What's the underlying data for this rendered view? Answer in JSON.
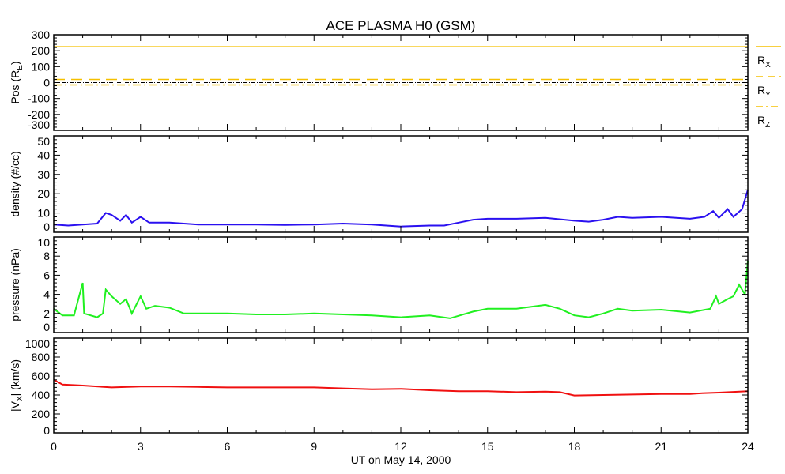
{
  "chart_data": {
    "type": "line",
    "title": "ACE PLASMA H0 (GSM)",
    "xlabel": "UT on May 14, 2000",
    "xlim": [
      0,
      24
    ],
    "xticks": [
      0,
      3,
      6,
      9,
      12,
      15,
      18,
      21,
      24
    ],
    "colors": {
      "pos": "#f5c000",
      "density": "#2a10f0",
      "pressure": "#20f020",
      "vx": "#f01010",
      "zero": "#000000"
    },
    "panels": [
      {
        "id": "pos",
        "ylabel": "Pos (R",
        "ylabel_sub": "E",
        "ylabel_end": ")",
        "ylim": [
          -300,
          300
        ],
        "yticks": [
          -300,
          -200,
          -100,
          0,
          100,
          200,
          300
        ],
        "series": [
          {
            "name": "R",
            "sub": "X",
            "style": "solid",
            "x": [
              0,
              24
            ],
            "y": [
              225,
              225
            ]
          },
          {
            "name": "R",
            "sub": "Y",
            "style": "dashed",
            "x": [
              0,
              24
            ],
            "y": [
              20,
              20
            ]
          },
          {
            "name": "R",
            "sub": "Z",
            "style": "dashdot",
            "x": [
              0,
              24
            ],
            "y": [
              -15,
              -15
            ]
          }
        ],
        "zero_line": true
      },
      {
        "id": "density",
        "ylabel": "density (#/cc)",
        "ylabel_sub": "",
        "ylabel_end": "",
        "ylim": [
          0,
          50
        ],
        "yticks": [
          0,
          10,
          20,
          30,
          40,
          50
        ],
        "series": [
          {
            "name": "density",
            "style": "solid",
            "x": [
              0,
              0.5,
              1,
              1.5,
              1.8,
              2.0,
              2.3,
              2.5,
              2.7,
              3,
              3.3,
              4,
              5,
              6,
              7,
              8,
              9,
              10,
              11,
              12,
              13,
              13.5,
              14,
              14.5,
              15,
              16,
              17,
              18,
              18.5,
              19,
              19.5,
              20,
              21,
              22,
              22.5,
              22.8,
              23,
              23.3,
              23.5,
              23.8,
              24
            ],
            "y": [
              4,
              3.5,
              4,
              4.5,
              10,
              9,
              6,
              9,
              5,
              8,
              5,
              5,
              4,
              4,
              4,
              3.8,
              4,
              4.5,
              4,
              3,
              3.5,
              3.5,
              5,
              6.5,
              7,
              7,
              7.5,
              6,
              5.5,
              6.5,
              8,
              7.5,
              8,
              7,
              8,
              11,
              7.5,
              12,
              8,
              12,
              22
            ]
          }
        ]
      },
      {
        "id": "pressure",
        "ylabel": "pressure (nPa)",
        "ylabel_sub": "",
        "ylabel_end": "",
        "ylim": [
          0,
          10
        ],
        "yticks": [
          0,
          2,
          4,
          6,
          8,
          10
        ],
        "series": [
          {
            "name": "pressure",
            "style": "solid",
            "x": [
              0,
              0.3,
              0.7,
              1.0,
              1.05,
              1.5,
              1.7,
              1.8,
              2.0,
              2.3,
              2.5,
              2.7,
              3,
              3.2,
              3.5,
              4,
              4.5,
              5,
              6,
              7,
              8,
              9,
              10,
              11,
              12,
              13,
              13.7,
              14.5,
              15,
              16,
              17,
              17.5,
              18,
              18.5,
              19,
              19.5,
              20,
              21,
              22,
              22.7,
              22.9,
              23,
              23.3,
              23.5,
              23.7,
              23.9,
              24
            ],
            "y": [
              2.5,
              1.8,
              1.8,
              5.2,
              2,
              1.6,
              2,
              4.5,
              3.8,
              3,
              3.5,
              2,
              3.8,
              2.5,
              2.8,
              2.6,
              2,
              2,
              2,
              1.9,
              1.9,
              2,
              1.9,
              1.8,
              1.6,
              1.8,
              1.5,
              2.2,
              2.5,
              2.5,
              2.9,
              2.5,
              1.8,
              1.6,
              2,
              2.5,
              2.3,
              2.4,
              2.1,
              2.5,
              3.8,
              3,
              3.5,
              3.8,
              5,
              4,
              7.5
            ]
          }
        ]
      },
      {
        "id": "vx",
        "ylabel": "|V",
        "ylabel_sub": "X",
        "ylabel_end": "| (km/s)",
        "ylim": [
          0,
          1000
        ],
        "yticks": [
          0,
          200,
          400,
          600,
          800,
          1000
        ],
        "series": [
          {
            "name": "|Vx|",
            "style": "solid",
            "x": [
              0,
              0.3,
              1,
              2,
              3,
              4,
              5,
              6,
              8,
              9,
              10,
              11,
              12,
              13,
              14,
              15,
              16,
              17,
              17.5,
              18,
              19,
              20,
              21,
              22,
              22.5,
              23,
              24
            ],
            "y": [
              560,
              510,
              500,
              480,
              490,
              490,
              485,
              480,
              480,
              480,
              470,
              460,
              465,
              450,
              440,
              440,
              430,
              435,
              430,
              395,
              400,
              405,
              410,
              410,
              420,
              425,
              440
            ]
          }
        ]
      }
    ]
  }
}
